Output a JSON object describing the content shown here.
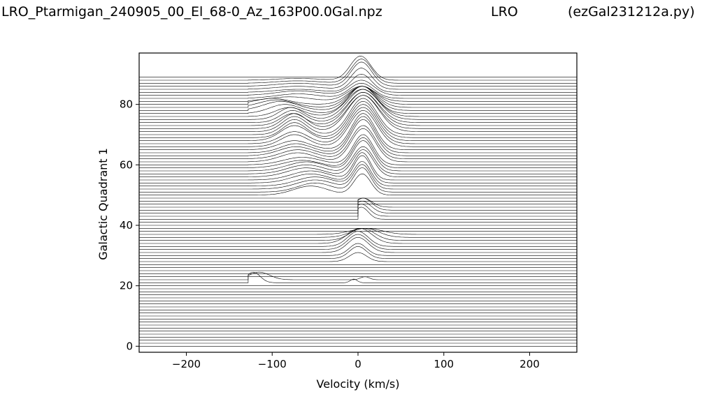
{
  "header": {
    "left": "LRO_Ptarmigan_240905_00_El_68-0_Az_163P00.0Gal.npz",
    "center": "LRO",
    "right": "(ezGal231212a.py)"
  },
  "chart_data": {
    "type": "line",
    "xlabel": "Velocity (km/s)",
    "ylabel": "Galactic Quadrant 1",
    "xlim": [
      -255,
      255
    ],
    "ylim": [
      -2,
      97
    ],
    "xticks": [
      -200,
      -100,
      0,
      100,
      200
    ],
    "xtick_labels": [
      "−200",
      "−100",
      "0",
      "100",
      "200"
    ],
    "yticks": [
      0,
      20,
      40,
      60,
      80
    ],
    "ytick_labels": [
      "0",
      "20",
      "40",
      "60",
      "80"
    ],
    "grid": false,
    "legend": "none",
    "line_color": "#000000",
    "stack": {
      "trace_count": 90,
      "baseline_start": 0,
      "baseline_step": 1
    },
    "traces": [
      {
        "baseline": 21,
        "x_range": [
          -128,
          12
        ],
        "features": [
          {
            "center": -122,
            "width": 8,
            "height": 3.5
          },
          {
            "center": -5,
            "width": 4,
            "height": 1.2
          }
        ]
      },
      {
        "baseline": 22,
        "x_range": [
          -128,
          25
        ],
        "features": [
          {
            "center": -115,
            "width": 12,
            "height": 2.5
          },
          {
            "center": 8,
            "width": 5,
            "height": 1
          }
        ]
      },
      {
        "baseline": 28,
        "x_range": [
          -128,
          70
        ],
        "features": [
          {
            "center": 0,
            "width": 10,
            "height": 3
          }
        ]
      },
      {
        "baseline": 29,
        "x_range": [
          -128,
          70
        ],
        "features": [
          {
            "center": 0,
            "width": 10,
            "height": 4
          }
        ]
      },
      {
        "baseline": 30,
        "x_range": [
          -128,
          70
        ],
        "features": [
          {
            "center": 0,
            "width": 10,
            "height": 4
          }
        ]
      },
      {
        "baseline": 31,
        "x_range": [
          -128,
          70
        ],
        "features": [
          {
            "center": 0,
            "width": 12,
            "height": 5
          }
        ]
      },
      {
        "baseline": 32,
        "x_range": [
          -128,
          70
        ],
        "features": [
          {
            "center": 0,
            "width": 12,
            "height": 5
          }
        ]
      },
      {
        "baseline": 33,
        "x_range": [
          -128,
          70
        ],
        "features": [
          {
            "center": 0,
            "width": 12,
            "height": 5
          }
        ]
      },
      {
        "baseline": 34,
        "x_range": [
          -128,
          70
        ],
        "features": [
          {
            "center": 2,
            "width": 14,
            "height": 5
          }
        ]
      },
      {
        "baseline": 35,
        "x_range": [
          -128,
          70
        ],
        "features": [
          {
            "center": 5,
            "width": 14,
            "height": 4
          }
        ]
      },
      {
        "baseline": 36,
        "x_range": [
          -128,
          70
        ],
        "features": [
          {
            "center": 8,
            "width": 16,
            "height": 3
          }
        ]
      },
      {
        "baseline": 37,
        "x_range": [
          -128,
          70
        ],
        "features": [
          {
            "center": 10,
            "width": 18,
            "height": 2
          }
        ]
      },
      {
        "baseline": 42,
        "x_range": [
          0,
          130
        ],
        "features": [
          {
            "center": 4,
            "width": 8,
            "height": 4
          }
        ]
      },
      {
        "baseline": 43,
        "x_range": [
          0,
          130
        ],
        "features": [
          {
            "center": 4,
            "width": 9,
            "height": 4
          }
        ]
      },
      {
        "baseline": 44,
        "x_range": [
          0,
          130
        ],
        "features": [
          {
            "center": 5,
            "width": 10,
            "height": 4
          }
        ]
      },
      {
        "baseline": 45,
        "x_range": [
          0,
          130
        ],
        "features": [
          {
            "center": 6,
            "width": 10,
            "height": 4
          }
        ]
      },
      {
        "baseline": 46,
        "x_range": [
          0,
          130
        ],
        "features": [
          {
            "center": 6,
            "width": 10,
            "height": 3
          }
        ]
      },
      {
        "baseline": 50,
        "x_range": [
          -128,
          70
        ],
        "features": [
          {
            "center": -55,
            "width": 20,
            "height": 3
          },
          {
            "center": 5,
            "width": 10,
            "height": 7
          }
        ]
      },
      {
        "baseline": 51,
        "x_range": [
          -128,
          70
        ],
        "features": [
          {
            "center": -50,
            "width": 20,
            "height": 3
          },
          {
            "center": 5,
            "width": 10,
            "height": 8
          }
        ]
      },
      {
        "baseline": 52,
        "x_range": [
          -128,
          70
        ],
        "features": [
          {
            "center": -50,
            "width": 22,
            "height": 3
          },
          {
            "center": 5,
            "width": 10,
            "height": 8
          }
        ]
      },
      {
        "baseline": 53,
        "x_range": [
          -128,
          70
        ],
        "features": [
          {
            "center": -50,
            "width": 22,
            "height": 3
          },
          {
            "center": 5,
            "width": 10,
            "height": 8
          }
        ]
      },
      {
        "baseline": 54,
        "x_range": [
          -128,
          70
        ],
        "features": [
          {
            "center": -55,
            "width": 22,
            "height": 3
          },
          {
            "center": 5,
            "width": 10,
            "height": 9
          }
        ]
      },
      {
        "baseline": 55,
        "x_range": [
          -128,
          70
        ],
        "features": [
          {
            "center": -55,
            "width": 22,
            "height": 3
          },
          {
            "center": 5,
            "width": 10,
            "height": 9
          }
        ]
      },
      {
        "baseline": 56,
        "x_range": [
          -128,
          75
        ],
        "features": [
          {
            "center": -60,
            "width": 22,
            "height": 3
          },
          {
            "center": 6,
            "width": 12,
            "height": 9
          }
        ]
      },
      {
        "baseline": 57,
        "x_range": [
          -128,
          75
        ],
        "features": [
          {
            "center": -60,
            "width": 22,
            "height": 3
          },
          {
            "center": 6,
            "width": 12,
            "height": 9
          }
        ]
      },
      {
        "baseline": 58,
        "x_range": [
          -128,
          130
        ],
        "features": [
          {
            "center": -60,
            "width": 22,
            "height": 3
          },
          {
            "center": 6,
            "width": 12,
            "height": 10
          }
        ]
      },
      {
        "baseline": 59,
        "x_range": [
          -128,
          130
        ],
        "features": [
          {
            "center": -65,
            "width": 22,
            "height": 2.5
          },
          {
            "center": 6,
            "width": 12,
            "height": 10
          }
        ]
      },
      {
        "baseline": 60,
        "x_range": [
          -128,
          130
        ],
        "features": [
          {
            "center": -65,
            "width": 22,
            "height": 2.5
          },
          {
            "center": 6,
            "width": 12,
            "height": 10
          }
        ]
      },
      {
        "baseline": 61,
        "x_range": [
          -128,
          130
        ],
        "features": [
          {
            "center": -70,
            "width": 20,
            "height": 3
          },
          {
            "center": 6,
            "width": 14,
            "height": 11
          }
        ]
      },
      {
        "baseline": 62,
        "x_range": [
          -128,
          130
        ],
        "features": [
          {
            "center": -70,
            "width": 20,
            "height": 3
          },
          {
            "center": 6,
            "width": 14,
            "height": 11
          }
        ]
      },
      {
        "baseline": 63,
        "x_range": [
          -128,
          130
        ],
        "features": [
          {
            "center": -72,
            "width": 20,
            "height": 3
          },
          {
            "center": 6,
            "width": 14,
            "height": 12
          }
        ]
      },
      {
        "baseline": 64,
        "x_range": [
          -128,
          130
        ],
        "features": [
          {
            "center": -72,
            "width": 18,
            "height": 3
          },
          {
            "center": 6,
            "width": 14,
            "height": 12
          }
        ]
      },
      {
        "baseline": 65,
        "x_range": [
          -128,
          130
        ],
        "features": [
          {
            "center": -74,
            "width": 18,
            "height": 3
          },
          {
            "center": 6,
            "width": 14,
            "height": 12
          }
        ]
      },
      {
        "baseline": 66,
        "x_range": [
          -128,
          130
        ],
        "features": [
          {
            "center": -74,
            "width": 16,
            "height": 4
          },
          {
            "center": 6,
            "width": 16,
            "height": 12
          }
        ]
      },
      {
        "baseline": 67,
        "x_range": [
          -128,
          130
        ],
        "features": [
          {
            "center": -74,
            "width": 16,
            "height": 4
          },
          {
            "center": 6,
            "width": 16,
            "height": 12
          }
        ]
      },
      {
        "baseline": 68,
        "x_range": [
          -128,
          130
        ],
        "features": [
          {
            "center": -74,
            "width": 16,
            "height": 5
          },
          {
            "center": 6,
            "width": 16,
            "height": 12
          }
        ]
      },
      {
        "baseline": 69,
        "x_range": [
          -128,
          130
        ],
        "features": [
          {
            "center": -74,
            "width": 14,
            "height": 5
          },
          {
            "center": 6,
            "width": 16,
            "height": 12
          }
        ]
      },
      {
        "baseline": 70,
        "x_range": [
          -128,
          130
        ],
        "features": [
          {
            "center": -74,
            "width": 14,
            "height": 5
          },
          {
            "center": 6,
            "width": 16,
            "height": 12
          }
        ]
      },
      {
        "baseline": 71,
        "x_range": [
          -128,
          130
        ],
        "features": [
          {
            "center": -74,
            "width": 14,
            "height": 5
          },
          {
            "center": 6,
            "width": 18,
            "height": 12
          }
        ]
      },
      {
        "baseline": 72,
        "x_range": [
          -128,
          130
        ],
        "features": [
          {
            "center": -74,
            "width": 14,
            "height": 5
          },
          {
            "center": 6,
            "width": 18,
            "height": 11
          }
        ]
      },
      {
        "baseline": 73,
        "x_range": [
          -128,
          130
        ],
        "features": [
          {
            "center": -76,
            "width": 14,
            "height": 4
          },
          {
            "center": 6,
            "width": 18,
            "height": 11
          }
        ]
      },
      {
        "baseline": 74,
        "x_range": [
          -128,
          130
        ],
        "features": [
          {
            "center": -76,
            "width": 14,
            "height": 4
          },
          {
            "center": 6,
            "width": 18,
            "height": 10
          }
        ]
      },
      {
        "baseline": 75,
        "x_range": [
          -128,
          130
        ],
        "features": [
          {
            "center": -78,
            "width": 14,
            "height": 4
          },
          {
            "center": 6,
            "width": 18,
            "height": 10
          }
        ]
      },
      {
        "baseline": 76,
        "x_range": [
          -128,
          130
        ],
        "features": [
          {
            "center": -80,
            "width": 16,
            "height": 3
          },
          {
            "center": 5,
            "width": 18,
            "height": 9
          }
        ]
      },
      {
        "baseline": 77,
        "x_range": [
          -128,
          130
        ],
        "features": [
          {
            "center": -85,
            "width": 18,
            "height": 3
          },
          {
            "center": 5,
            "width": 16,
            "height": 9
          }
        ]
      },
      {
        "baseline": 78,
        "x_range": [
          -128,
          130
        ],
        "features": [
          {
            "center": -90,
            "width": 20,
            "height": 3
          },
          {
            "center": 5,
            "width": 16,
            "height": 8
          }
        ]
      },
      {
        "baseline": 79,
        "x_range": [
          -128,
          130
        ],
        "features": [
          {
            "center": -95,
            "width": 20,
            "height": 2.5
          },
          {
            "center": 5,
            "width": 16,
            "height": 7
          }
        ]
      },
      {
        "baseline": 80,
        "x_range": [
          -128,
          130
        ],
        "features": [
          {
            "center": -100,
            "width": 20,
            "height": 2
          },
          {
            "center": 5,
            "width": 16,
            "height": 6
          }
        ]
      },
      {
        "baseline": 81,
        "x_range": [
          -128,
          130
        ],
        "features": [
          {
            "center": -80,
            "width": 25,
            "height": 1.5
          },
          {
            "center": 4,
            "width": 16,
            "height": 5
          }
        ]
      },
      {
        "baseline": 82,
        "x_range": [
          -128,
          130
        ],
        "features": [
          {
            "center": -70,
            "width": 25,
            "height": 1.5
          },
          {
            "center": 4,
            "width": 14,
            "height": 5
          }
        ]
      },
      {
        "baseline": 83,
        "x_range": [
          -128,
          130
        ],
        "features": [
          {
            "center": -70,
            "width": 25,
            "height": 1.5
          },
          {
            "center": 4,
            "width": 14,
            "height": 5
          }
        ]
      },
      {
        "baseline": 84,
        "x_range": [
          -128,
          130
        ],
        "features": [
          {
            "center": -70,
            "width": 25,
            "height": 1
          },
          {
            "center": 4,
            "width": 12,
            "height": 6
          }
        ]
      },
      {
        "baseline": 85,
        "x_range": [
          -128,
          130
        ],
        "features": [
          {
            "center": -70,
            "width": 25,
            "height": 1
          },
          {
            "center": 4,
            "width": 12,
            "height": 7
          }
        ]
      },
      {
        "baseline": 86,
        "x_range": [
          -128,
          130
        ],
        "features": [
          {
            "center": -70,
            "width": 25,
            "height": 1
          },
          {
            "center": 4,
            "width": 12,
            "height": 8
          }
        ]
      },
      {
        "baseline": 87,
        "x_range": [
          -128,
          130
        ],
        "features": [
          {
            "center": -70,
            "width": 25,
            "height": 0.8
          },
          {
            "center": 4,
            "width": 12,
            "height": 8
          }
        ]
      },
      {
        "baseline": 88,
        "x_range": [
          -128,
          130
        ],
        "features": [
          {
            "center": -70,
            "width": 25,
            "height": 0.6
          },
          {
            "center": 3,
            "width": 12,
            "height": 8
          }
        ]
      }
    ]
  }
}
